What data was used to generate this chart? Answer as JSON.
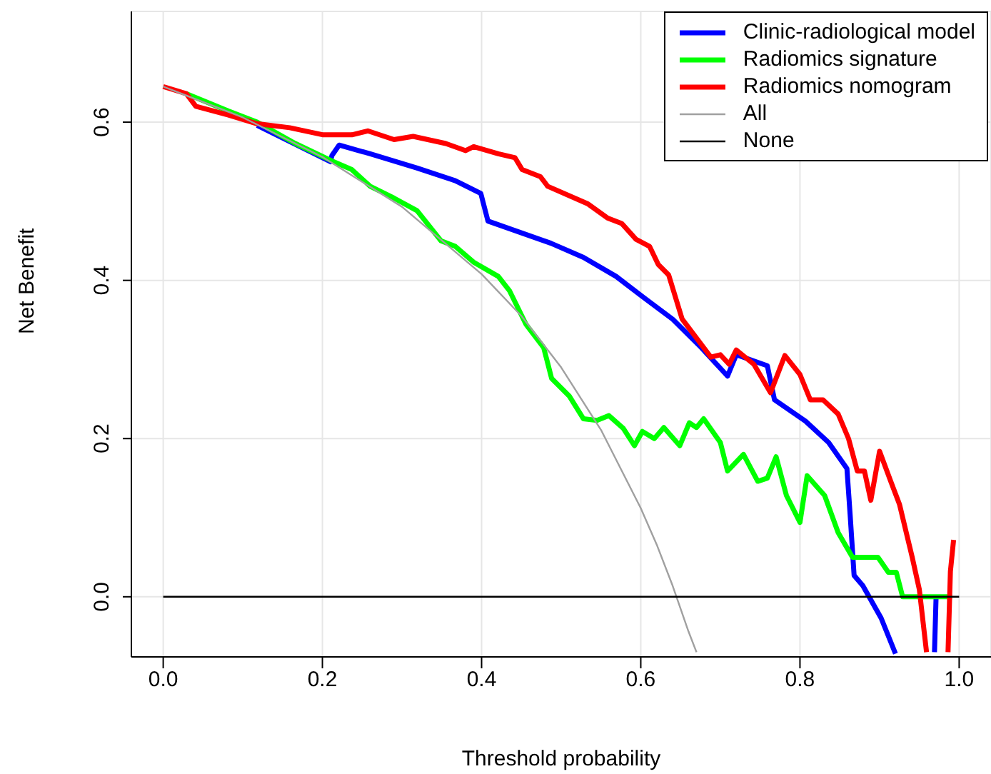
{
  "chart_data": {
    "type": "line",
    "xlabel": "Threshold probability",
    "ylabel": "Net Benefit",
    "xlim": [
      -0.04,
      1.04
    ],
    "ylim": [
      -0.076,
      0.74
    ],
    "xticks": [
      {
        "value": 0,
        "label": "0.0"
      },
      {
        "value": 0.2,
        "label": "0.2"
      },
      {
        "value": 0.4,
        "label": "0.4"
      },
      {
        "value": 0.6,
        "label": "0.6"
      },
      {
        "value": 0.8,
        "label": "0.8"
      },
      {
        "value": 1,
        "label": "1.0"
      }
    ],
    "yticks": [
      {
        "value": 0,
        "label": "0.0"
      },
      {
        "value": 0.2,
        "label": "0.2"
      },
      {
        "value": 0.4,
        "label": "0.4"
      },
      {
        "value": 0.6,
        "label": "0.6"
      }
    ],
    "grid": true,
    "legend": "top right",
    "marker": "none",
    "line_style": "solid",
    "series": [
      {
        "name": "Clinic-radiological model",
        "color": "#0000ff",
        "x": [
          0.118,
          0.21,
          0.212,
          0.221,
          0.26,
          0.319,
          0.367,
          0.399,
          0.408,
          0.487,
          0.528,
          0.569,
          0.604,
          0.64,
          0.676,
          0.709,
          0.72,
          0.759,
          0.768,
          0.807,
          0.836,
          0.859,
          0.863,
          0.868,
          0.879,
          0.902,
          0.92,
          0.95,
          0.969,
          0.971
        ],
        "values": [
          0.596,
          0.55,
          0.558,
          0.571,
          0.56,
          0.542,
          0.526,
          0.51,
          0.475,
          0.447,
          0.429,
          0.405,
          0.378,
          0.351,
          0.315,
          0.279,
          0.306,
          0.292,
          0.249,
          0.222,
          0.195,
          0.162,
          0.104,
          0.027,
          0.014,
          -0.027,
          -0.072,
          null,
          -0.07,
          0.0
        ]
      },
      {
        "name": "Radiomics signature",
        "color": "#00ff00",
        "x": [
          0.029,
          0.082,
          0.118,
          0.166,
          0.212,
          0.237,
          0.26,
          0.29,
          0.319,
          0.349,
          0.367,
          0.39,
          0.421,
          0.435,
          0.456,
          0.478,
          0.488,
          0.51,
          0.528,
          0.545,
          0.56,
          0.578,
          0.592,
          0.602,
          0.617,
          0.629,
          0.649,
          0.661,
          0.67,
          0.679,
          0.7,
          0.709,
          0.729,
          0.747,
          0.759,
          0.77,
          0.783,
          0.8,
          0.809,
          0.831,
          0.848,
          0.866,
          0.898,
          0.911,
          0.921,
          0.929,
          0.991
        ],
        "values": [
          0.636,
          0.614,
          0.6,
          0.573,
          0.551,
          0.54,
          0.519,
          0.504,
          0.488,
          0.45,
          0.443,
          0.423,
          0.405,
          0.387,
          0.344,
          0.315,
          0.276,
          0.254,
          0.225,
          0.223,
          0.229,
          0.213,
          0.191,
          0.209,
          0.2,
          0.214,
          0.191,
          0.22,
          0.214,
          0.225,
          0.195,
          0.159,
          0.18,
          0.146,
          0.15,
          0.177,
          0.128,
          0.094,
          0.153,
          0.128,
          0.081,
          0.05,
          0.05,
          0.031,
          0.031,
          0.0,
          0.0
        ]
      },
      {
        "name": "Radiomics nomogram",
        "color": "#ff0000",
        "x": [
          0,
          0.029,
          0.041,
          0.082,
          0.118,
          0.159,
          0.201,
          0.237,
          0.257,
          0.29,
          0.314,
          0.355,
          0.38,
          0.39,
          0.421,
          0.442,
          0.451,
          0.474,
          0.483,
          0.533,
          0.558,
          0.576,
          0.594,
          0.611,
          0.622,
          0.635,
          0.652,
          0.688,
          0.7,
          0.711,
          0.72,
          0.742,
          0.763,
          0.781,
          0.8,
          0.813,
          0.829,
          0.848,
          0.861,
          0.872,
          0.881,
          0.889,
          0.9,
          0.914,
          0.925,
          0.941,
          0.95,
          0.959,
          0.97,
          0.986,
          0.989,
          0.993
        ],
        "values": [
          0.645,
          0.636,
          0.62,
          0.609,
          0.598,
          0.593,
          0.584,
          0.584,
          0.589,
          0.578,
          0.582,
          0.573,
          0.564,
          0.569,
          0.56,
          0.555,
          0.54,
          0.531,
          0.519,
          0.497,
          0.479,
          0.472,
          0.452,
          0.443,
          0.42,
          0.407,
          0.351,
          0.303,
          0.306,
          0.294,
          0.312,
          0.294,
          0.258,
          0.305,
          0.281,
          0.249,
          0.249,
          0.231,
          0.2,
          0.159,
          0.159,
          0.122,
          0.184,
          0.146,
          0.117,
          0.05,
          0.009,
          -0.07,
          null,
          -0.07,
          0.032,
          0.072
        ]
      },
      {
        "name": "All",
        "color": "#a0a0a0",
        "x": [
          0,
          0.1,
          0.2,
          0.3,
          0.4,
          0.45,
          0.5,
          0.55,
          0.6,
          0.62,
          0.64,
          0.66,
          0.67
        ],
        "values": [
          0.645,
          0.606,
          0.556,
          0.493,
          0.408,
          0.355,
          0.29,
          0.211,
          0.112,
          0.066,
          0.014,
          -0.044,
          -0.07
        ]
      },
      {
        "name": "None",
        "color": "#000000",
        "x": [
          0,
          1
        ],
        "values": [
          0,
          0
        ]
      }
    ]
  }
}
